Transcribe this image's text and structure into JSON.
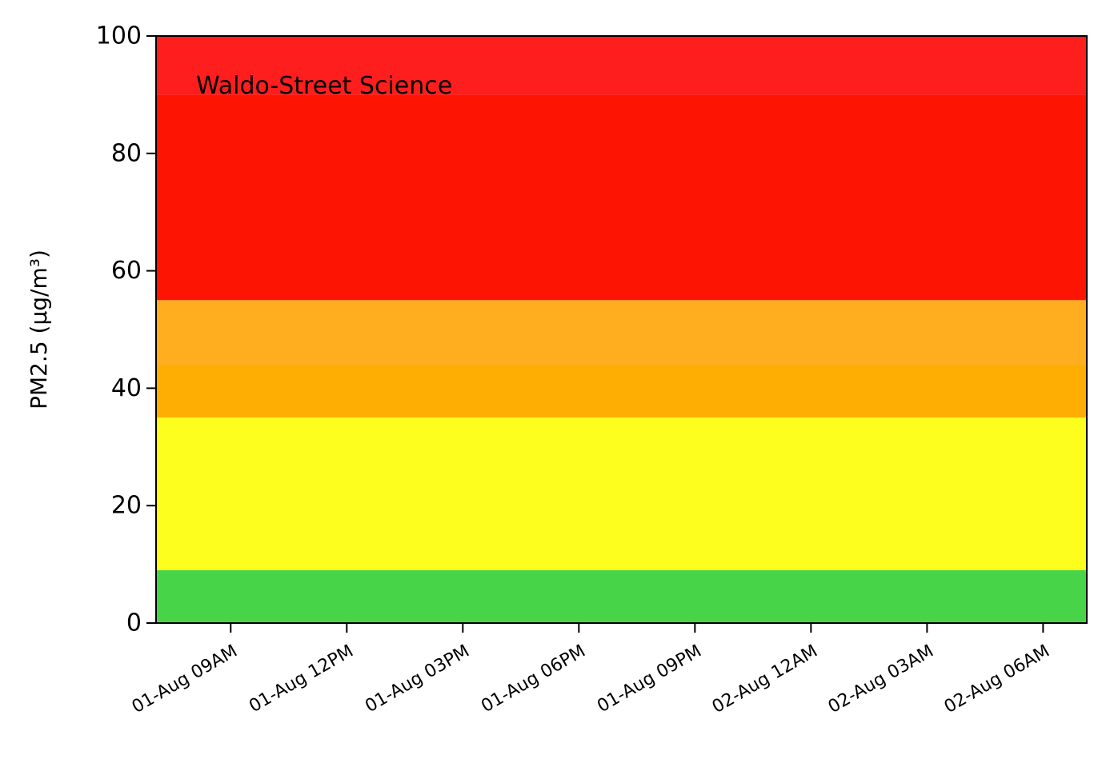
{
  "chart_data": {
    "type": "area",
    "ylabel": "PM2.5 (µg/m³)",
    "xlabel": "",
    "ylim": [
      0,
      100
    ],
    "yticks": [
      0,
      20,
      40,
      60,
      80,
      100
    ],
    "yticklabels": [
      "0",
      "20",
      "40",
      "60",
      "80",
      "100"
    ],
    "xticklabels": [
      "01-Aug 09AM",
      "01-Aug 12PM",
      "01-Aug 03PM",
      "01-Aug 06PM",
      "01-Aug 09PM",
      "02-Aug 12AM",
      "02-Aug 03AM",
      "02-Aug 06AM"
    ],
    "x_range_hours": [
      -1.93,
      22.13
    ],
    "xtick_hours": [
      0,
      3,
      6,
      9,
      12,
      15,
      18,
      21
    ],
    "bands": [
      {
        "from": 0,
        "to": 9,
        "color": "#48d448"
      },
      {
        "from": 9,
        "to": 35,
        "color": "#fefe1e"
      },
      {
        "from": 35,
        "to": 44,
        "color": "#feae02"
      },
      {
        "from": 44,
        "to": 55,
        "color": "#feae1e"
      },
      {
        "from": 55,
        "to": 90,
        "color": "#fe1402"
      },
      {
        "from": 90,
        "to": 100,
        "color": "#fe1e1e"
      }
    ],
    "annotation": "Waldo-Street Science",
    "grid": false,
    "legend": "none"
  }
}
